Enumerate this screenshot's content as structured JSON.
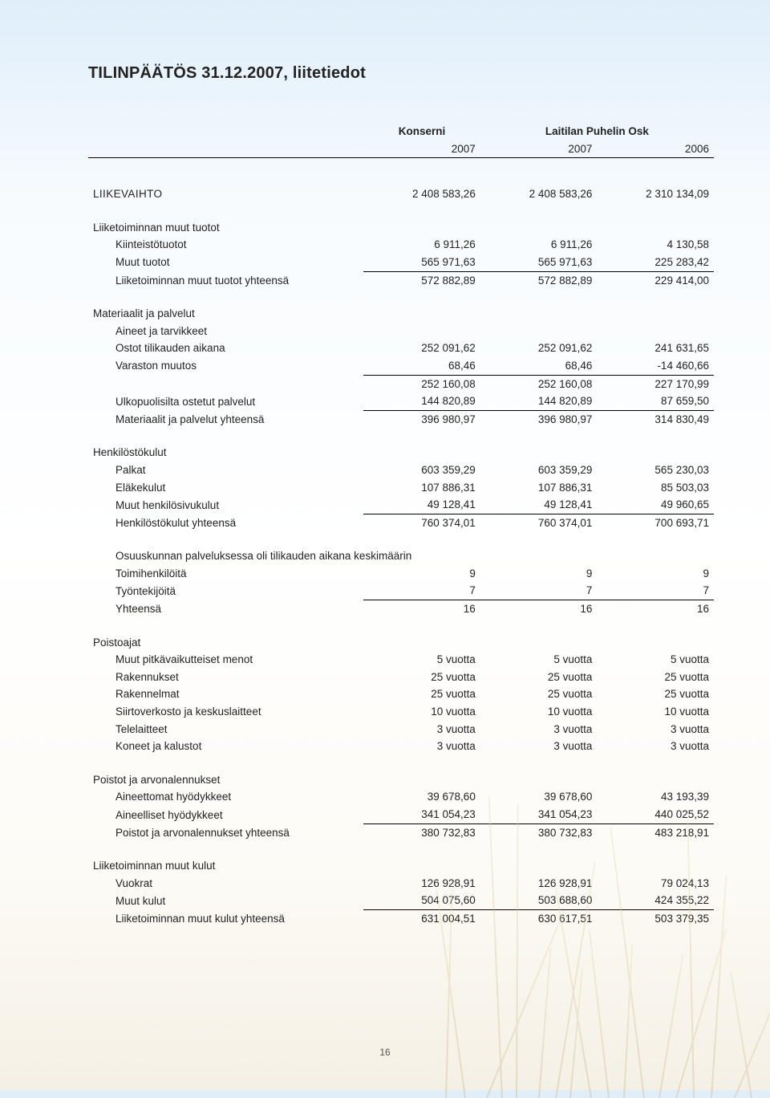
{
  "title": "TILINPÄÄTÖS 31.12.2007,  liitetiedot",
  "page_number": "16",
  "headers": {
    "konserni": "Konserni",
    "laitilan": "Laitilan Puhelin Osk",
    "y_k": "2007",
    "y_a": "2007",
    "y_b": "2006"
  },
  "sections": [
    {
      "type": "single",
      "label": "LIIKEVAIHTO",
      "caps": true,
      "v": [
        "2 408 583,26",
        "2 408 583,26",
        "2 310 134,09"
      ]
    },
    {
      "type": "group",
      "title": "Liiketoiminnan muut tuotot",
      "rows": [
        {
          "label": "Kiinteistötuotot",
          "v": [
            "6 911,26",
            "6 911,26",
            "4 130,58"
          ]
        },
        {
          "label": "Muut tuotot",
          "v": [
            "565 971,63",
            "565 971,63",
            "225 283,42"
          ],
          "underline": true
        },
        {
          "label": "Liiketoiminnan muut tuotot yhteensä",
          "v": [
            "572 882,89",
            "572 882,89",
            "229 414,00"
          ]
        }
      ]
    },
    {
      "type": "group",
      "title": "Materiaalit ja palvelut",
      "rows": [
        {
          "label": "Aineet ja tarvikkeet",
          "v": [
            "",
            "",
            ""
          ]
        },
        {
          "label": "Ostot tilikauden aikana",
          "v": [
            "252 091,62",
            "252 091,62",
            "241 631,65"
          ]
        },
        {
          "label": "Varaston muutos",
          "v": [
            "68,46",
            "68,46",
            "-14 460,66"
          ],
          "underline": true
        },
        {
          "label": "",
          "v": [
            "252 160,08",
            "252 160,08",
            "227 170,99"
          ]
        },
        {
          "label": "Ulkopuolisilta ostetut palvelut",
          "v": [
            "144 820,89",
            "144 820,89",
            "87 659,50"
          ],
          "underline": true
        },
        {
          "label": "Materiaalit ja palvelut yhteensä",
          "v": [
            "396 980,97",
            "396 980,97",
            "314 830,49"
          ]
        }
      ]
    },
    {
      "type": "group",
      "title": "Henkilöstökulut",
      "rows": [
        {
          "label": "Palkat",
          "v": [
            "603 359,29",
            "603 359,29",
            "565 230,03"
          ]
        },
        {
          "label": "Eläkekulut",
          "v": [
            "107 886,31",
            "107 886,31",
            "85 503,03"
          ]
        },
        {
          "label": "Muut henkilösivukulut",
          "v": [
            "49 128,41",
            "49 128,41",
            "49 960,65"
          ],
          "underline": true
        },
        {
          "label": "Henkilöstökulut yhteensä",
          "v": [
            "760 374,01",
            "760 374,01",
            "700 693,71"
          ]
        }
      ],
      "sub": {
        "title": "Osuuskunnan palveluksessa oli tilikauden aikana keskimäärin",
        "rows": [
          {
            "label": "Toimihenkilöitä",
            "v": [
              "9",
              "9",
              "9"
            ]
          },
          {
            "label": "Työntekijöitä",
            "v": [
              "7",
              "7",
              "7"
            ],
            "underline": true
          },
          {
            "label": "Yhteensä",
            "v": [
              "16",
              "16",
              "16"
            ]
          }
        ]
      }
    },
    {
      "type": "group",
      "title": "Poistoajat",
      "rows": [
        {
          "label": "Muut pitkävaikutteiset menot",
          "v": [
            "5 vuotta",
            "5 vuotta",
            "5 vuotta"
          ]
        },
        {
          "label": "Rakennukset",
          "v": [
            "25 vuotta",
            "25 vuotta",
            "25 vuotta"
          ]
        },
        {
          "label": "Rakennelmat",
          "v": [
            "25 vuotta",
            "25 vuotta",
            "25 vuotta"
          ]
        },
        {
          "label": "Siirtoverkosto ja keskuslaitteet",
          "v": [
            "10 vuotta",
            "10 vuotta",
            "10 vuotta"
          ]
        },
        {
          "label": "Telelaitteet",
          "v": [
            "3 vuotta",
            "3 vuotta",
            "3 vuotta"
          ]
        },
        {
          "label": "Koneet ja kalustot",
          "v": [
            "3 vuotta",
            "3 vuotta",
            "3 vuotta"
          ]
        }
      ]
    },
    {
      "type": "group",
      "title": "Poistot ja arvonalennukset",
      "rows": [
        {
          "label": "Aineettomat hyödykkeet",
          "v": [
            "39 678,60",
            "39 678,60",
            "43 193,39"
          ]
        },
        {
          "label": "Aineelliset hyödykkeet",
          "v": [
            "341 054,23",
            "341 054,23",
            "440 025,52"
          ],
          "underline": true
        },
        {
          "label": "Poistot ja arvonalennukset yhteensä",
          "v": [
            "380 732,83",
            "380 732,83",
            "483 218,91"
          ]
        }
      ]
    },
    {
      "type": "group",
      "title": "Liiketoiminnan muut kulut",
      "rows": [
        {
          "label": "Vuokrat",
          "v": [
            "126 928,91",
            "126 928,91",
            "79 024,13"
          ]
        },
        {
          "label": "Muut kulut",
          "v": [
            "504 075,60",
            "503 688,60",
            "424 355,22"
          ],
          "underline": true
        },
        {
          "label": "Liiketoiminnan muut kulut yhteensä",
          "v": [
            "631 004,51",
            "630 617,51",
            "503 379,35"
          ]
        }
      ]
    }
  ]
}
